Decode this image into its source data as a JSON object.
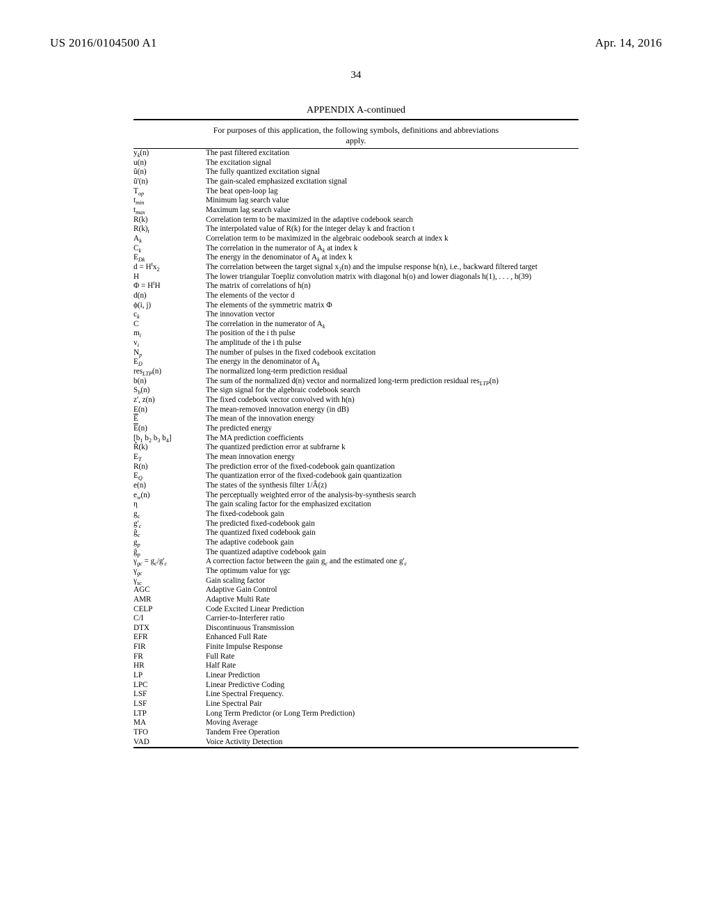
{
  "header": {
    "pub_no": "US 2016/0104500 A1",
    "pub_date": "Apr. 14, 2016",
    "page_number": "34"
  },
  "appendix": {
    "title": "APPENDIX A-continued",
    "caption_line1": "For purposes of this application, the following symbols, definitions and abbreviations",
    "caption_line2": "apply."
  },
  "rows": [
    {
      "sym": "y<span class='sub it'>k</span>(n)",
      "def": "The past filtered excitation"
    },
    {
      "sym": "u(n)",
      "def": "The excitation signal"
    },
    {
      "sym": "û(n)",
      "def": "The fully quantized excitation signal"
    },
    {
      "sym": "û'(n)",
      "def": "The gain-scaled emphasized excitation signal"
    },
    {
      "sym": "T<span class='sub it'>op</span>",
      "def": "The beat open-loop lag"
    },
    {
      "sym": "t<span class='sub it'>min</span>",
      "def": "Minimum lag search value"
    },
    {
      "sym": "t<span class='sub it'>max</span>",
      "def": "Maximum lag search value"
    },
    {
      "sym": "R(k)",
      "def": "Correlation term to be maximized in the adaptive codebook search"
    },
    {
      "sym": "R(k)<span class='sub it'>t</span>",
      "def": "The interpolated value of R(k) for the integer delay k and fraction t"
    },
    {
      "sym": "A<span class='sub it'>k</span>",
      "def": "Correlation term to be maximized in the algebraic oodebook search at index k"
    },
    {
      "sym": "C<span class='sub it'>k</span>",
      "def": "The correlation in the numerator of A<span class='sub it'>k</span> at index k"
    },
    {
      "sym": "E<span class='sub it'>Dk</span>",
      "def": "The energy in the denominator of A<span class='sub it'>k</span> at index k"
    },
    {
      "sym": "d = H<span class='sup'>t</span>x<span class='sub'>2</span>",
      "def": "The correlation between the target signal x<span class='sub'>2</span>(n) and the impulse response h(n), i.e., backward filtered target"
    },
    {
      "sym": "H",
      "def": "The lower triangular Toepliz convolution matrix with diagonal h(o) and lower diagonals h(1), . . . , h(39)"
    },
    {
      "sym": "Φ = H<span class='sup'>t</span>H",
      "def": "The matrix of correlations of h(n)"
    },
    {
      "sym": "d(n)",
      "def": "The elements of the vector d"
    },
    {
      "sym": "ϕ(i, j)",
      "def": "The elements of the symmetric matrix Φ"
    },
    {
      "sym": "c<span class='sub it'>k</span>",
      "def": "The innovation vector"
    },
    {
      "sym": "C",
      "def": "The correlation in the numerator of A<span class='sub it'>k</span>"
    },
    {
      "sym": "m<span class='sub it'>i</span>",
      "def": "The position of the i th pulse"
    },
    {
      "sym": "v<span class='sub it'>i</span>",
      "def": "The amplitude of the i th pulse"
    },
    {
      "sym": "N<span class='sub it'>p</span>",
      "def": "The number of pulses in the fixed codebook excitation"
    },
    {
      "sym": "E<span class='sub it'>D</span>",
      "def": "The energy in the denominator of A<span class='sub it'>k</span>"
    },
    {
      "sym": "res<span class='sub it'>LTP</span>(n)",
      "def": "The normalized long-term prediction residual"
    },
    {
      "sym": "b(n)",
      "def": "The sum of the normalized d(n) vector and normalized long-term prediction residual res<span class='sub it'>LTP</span>(n)"
    },
    {
      "sym": "S<span class='sub it'>b</span>(n)",
      "def": "The sign signal for the algebraic codebook search"
    },
    {
      "sym": "z', z(n)",
      "def": "The fixed codebook vector convolved with h(n)"
    },
    {
      "sym": "E(n)",
      "def": "The mean-removed innovation energy (in dB)"
    },
    {
      "sym": "<span class='ol'>E</span>",
      "def": "The mean of the innovation energy"
    },
    {
      "sym": "<span class='ol'>E</span>(n)",
      "def": "The predicted energy"
    },
    {
      "sym": "[b<span class='sub'>1</span> b<span class='sub'>2</span> b<span class='sub'>3</span> b<span class='sub'>4</span>]",
      "def": "The MA prediction coefficients"
    },
    {
      "sym": "R̂(k)",
      "def": "The quantized prediction error at subfrarne k"
    },
    {
      "sym": "E<span class='sub it'>T</span>",
      "def": "The mean innovation energy"
    },
    {
      "sym": "R(n)",
      "def": "The prediction error of the fixed-codebook gain quantization"
    },
    {
      "sym": "E<span class='sub it'>Q</span>",
      "def": "The quantization error of the fixed-codebook gain quantization"
    },
    {
      "sym": "e(n)",
      "def": "The states of the synthesis filter 1/Â(z)"
    },
    {
      "sym": "e<span class='sub it'>w</span>(n)",
      "def": "The perceptually weighted error of the analysis-by-synthesis search"
    },
    {
      "sym": "η",
      "def": "The gain scaling factor for the emphasized excitation"
    },
    {
      "sym": "g<span class='sub it'>c</span>",
      "def": "The fixed-codebook gain"
    },
    {
      "sym": "g'<span class='sub it'>c</span>",
      "def": "The predicted fixed-codebook gain"
    },
    {
      "sym": "ĝ<span class='sub it'>c</span>",
      "def": "The quantized fixed codebook gain"
    },
    {
      "sym": "g<span class='sub it'>p</span>",
      "def": "The adaptive codebook gain"
    },
    {
      "sym": "ĝ<span class='sub it'>p</span>",
      "def": "The quantized adaptive codebook gain"
    },
    {
      "sym": "γ<span class='sub it'>gc</span> = g<span class='sub it'>c</span>/g'<span class='sub it'>c</span>",
      "def": "A correction factor between the gain g<span class='sub it'>c</span> and the estimated one g'<span class='sub it'>c</span>"
    },
    {
      "sym": "γ<span class='sub it'>gc</span>",
      "def": "The optimum value for γgc"
    },
    {
      "sym": "γ<span class='sub it'>sc</span>",
      "def": "Gain scaling factor"
    },
    {
      "sym": "AGC",
      "def": "Adaptive Gain Control"
    },
    {
      "sym": "AMR",
      "def": "Adaptive Multi Rate"
    },
    {
      "sym": "CELP",
      "def": "Code Excited Linear Prediction"
    },
    {
      "sym": "C/I",
      "def": "Carrier-to-Interferer ratio"
    },
    {
      "sym": "DTX",
      "def": "Discontinuous Transmission"
    },
    {
      "sym": "EFR",
      "def": "Enhanced Full Rate"
    },
    {
      "sym": "FIR",
      "def": "Finite Impulse Response"
    },
    {
      "sym": "FR",
      "def": "Full Rate"
    },
    {
      "sym": "HR",
      "def": "Half Rate"
    },
    {
      "sym": "LP",
      "def": "Linear Prediction"
    },
    {
      "sym": "LPC",
      "def": "Linear Predictive Coding"
    },
    {
      "sym": "LSF",
      "def": "Line Spectral Frequency."
    },
    {
      "sym": "LSF",
      "def": "Line Spectral Pair"
    },
    {
      "sym": "LTP",
      "def": "Long Term Predictor (or Long Term Prediction)"
    },
    {
      "sym": "MA",
      "def": "Moving Average"
    },
    {
      "sym": "TFO",
      "def": "Tandem Free Operation"
    },
    {
      "sym": "VAD",
      "def": "Voice Activity Detection"
    }
  ]
}
